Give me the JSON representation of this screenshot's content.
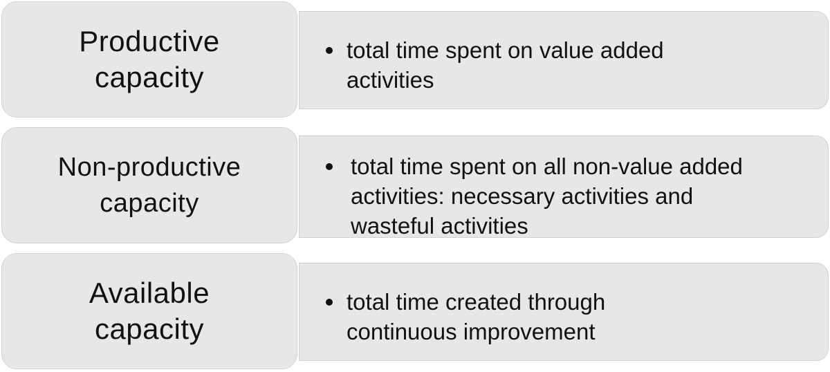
{
  "rows": [
    {
      "label": "Productive\ncapacity",
      "description": "total time spent on value added\nactivities"
    },
    {
      "label": "Non-productive\ncapacity",
      "description": "total time spent on all non-value added\nactivities: necessary activities and\nwasteful activities"
    },
    {
      "label": "Available\ncapacity",
      "description": "total time created through\ncontinuous improvement"
    }
  ],
  "colors": {
    "box_fill": "#e7e7e8",
    "box_border": "#d2d2d4",
    "text": "#111111"
  }
}
